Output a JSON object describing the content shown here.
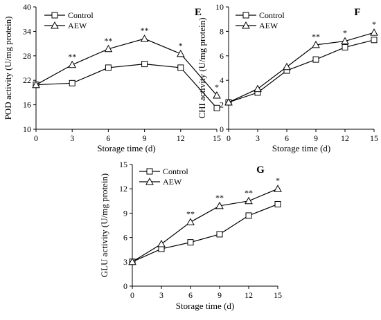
{
  "colors": {
    "ink": "#000000",
    "background": "#ffffff"
  },
  "chart_data": [
    {
      "panel": "E",
      "type": "line",
      "x": [
        0,
        3,
        6,
        9,
        12,
        15
      ],
      "xlabel": "Storage time (d)",
      "ylabel": "POD activity (U/mg protein)",
      "xlim": [
        0,
        15
      ],
      "ylim": [
        10,
        40
      ],
      "xticks": [
        "0",
        "3",
        "6",
        "9",
        "12",
        "15"
      ],
      "yticks": [
        "10",
        "16",
        "22",
        "28",
        "34",
        "40"
      ],
      "grid": false,
      "legend_position": "top-left",
      "series": [
        {
          "name": "Control",
          "marker": "square",
          "values": [
            20.9,
            21.3,
            25.1,
            26.0,
            25.1,
            15.2
          ]
        },
        {
          "name": "AEW",
          "marker": "triangle",
          "values": [
            20.9,
            25.8,
            29.7,
            32.2,
            28.5,
            18.3
          ]
        }
      ],
      "annotations": [
        {
          "x": 3,
          "y": 25.8,
          "text": "**"
        },
        {
          "x": 6,
          "y": 29.7,
          "text": "**"
        },
        {
          "x": 9,
          "y": 32.2,
          "text": "**"
        },
        {
          "x": 12,
          "y": 28.5,
          "text": "*"
        },
        {
          "x": 15,
          "y": 18.3,
          "text": "*"
        }
      ]
    },
    {
      "panel": "F",
      "type": "line",
      "x": [
        0,
        3,
        6,
        9,
        12,
        15
      ],
      "xlabel": "Storage time (d)",
      "ylabel": "CHI activity (U/mg protein)",
      "xlim": [
        0,
        15
      ],
      "ylim": [
        0,
        10
      ],
      "xticks": [
        "0",
        "3",
        "6",
        "9",
        "12",
        "15"
      ],
      "yticks": [
        "0",
        "2",
        "4",
        "6",
        "8",
        "10"
      ],
      "grid": false,
      "legend_position": "top-left",
      "series": [
        {
          "name": "Control",
          "marker": "square",
          "values": [
            2.2,
            3.0,
            4.8,
            5.7,
            6.7,
            7.3
          ]
        },
        {
          "name": "AEW",
          "marker": "triangle",
          "values": [
            2.2,
            3.3,
            5.1,
            6.9,
            7.2,
            7.9
          ]
        }
      ],
      "annotations": [
        {
          "x": 9,
          "y": 6.9,
          "text": "**"
        },
        {
          "x": 12,
          "y": 7.2,
          "text": "*"
        },
        {
          "x": 15,
          "y": 7.9,
          "text": "*"
        }
      ]
    },
    {
      "panel": "G",
      "type": "line",
      "x": [
        0,
        3,
        6,
        9,
        12,
        15
      ],
      "xlabel": "Storage time (d)",
      "ylabel": "GLU activity (U/mg protein)",
      "xlim": [
        0,
        15
      ],
      "ylim": [
        0,
        15
      ],
      "xticks": [
        "0",
        "3",
        "6",
        "9",
        "12",
        "15"
      ],
      "yticks": [
        "0",
        "3",
        "6",
        "9",
        "12",
        "15"
      ],
      "grid": false,
      "legend_position": "top-left",
      "series": [
        {
          "name": "Control",
          "marker": "square",
          "values": [
            3.0,
            4.6,
            5.4,
            6.4,
            8.7,
            10.1
          ]
        },
        {
          "name": "AEW",
          "marker": "triangle",
          "values": [
            3.0,
            5.2,
            7.9,
            9.9,
            10.5,
            12.0
          ]
        }
      ],
      "annotations": [
        {
          "x": 6,
          "y": 7.9,
          "text": "**"
        },
        {
          "x": 9,
          "y": 9.9,
          "text": "**"
        },
        {
          "x": 12,
          "y": 10.5,
          "text": "**"
        },
        {
          "x": 15,
          "y": 12.0,
          "text": "*"
        }
      ]
    }
  ]
}
